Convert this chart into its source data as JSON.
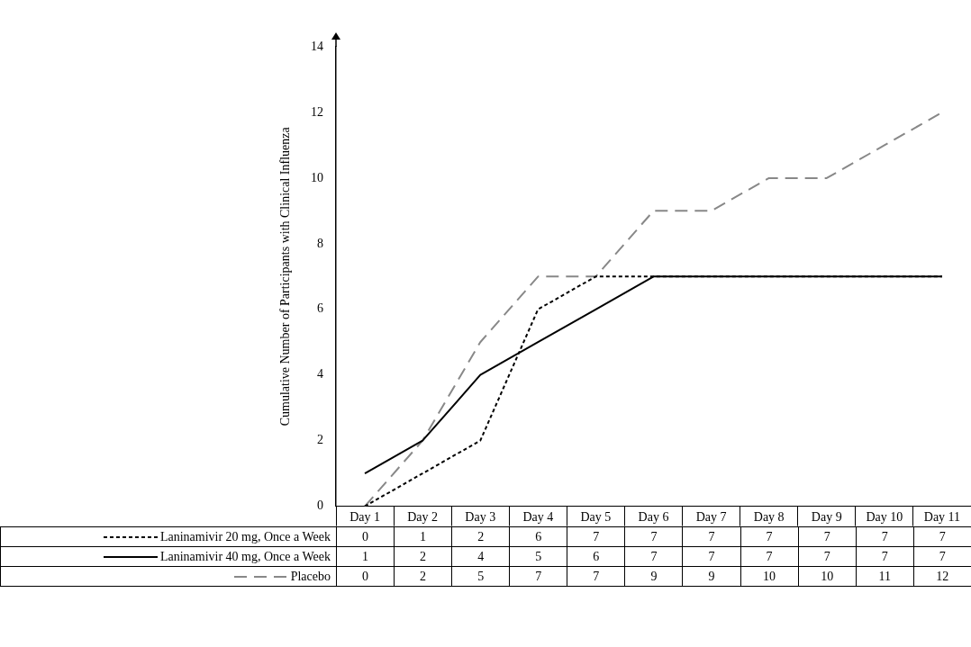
{
  "chart_data": {
    "type": "line",
    "ylabel": "Cumulative Number of Participants with Clinical Influenza",
    "categories": [
      "Day 1",
      "Day 2",
      "Day 3",
      "Day 4",
      "Day 5",
      "Day 6",
      "Day 7",
      "Day 8",
      "Day 9",
      "Day 10",
      "Day 11"
    ],
    "series": [
      {
        "name": "Laninamivir 20 mg, Once a Week",
        "color": "#000000",
        "line_style": "dotted",
        "values": [
          0,
          1,
          2,
          6,
          7,
          7,
          7,
          7,
          7,
          7,
          7
        ]
      },
      {
        "name": "Laninamivir 40 mg, Once a Week",
        "color": "#000000",
        "line_style": "solid",
        "values": [
          1,
          2,
          4,
          5,
          6,
          7,
          7,
          7,
          7,
          7,
          7
        ]
      },
      {
        "name": "Placebo",
        "color": "#888888",
        "line_style": "dashed",
        "values": [
          0,
          2,
          5,
          7,
          7,
          9,
          9,
          10,
          10,
          11,
          12
        ]
      }
    ],
    "ylim": [
      0,
      14
    ],
    "yticks": [
      0,
      2,
      4,
      6,
      8,
      10,
      12,
      14
    ],
    "grid": false,
    "legend": "bottom",
    "data_labels": true,
    "marker": "none"
  }
}
